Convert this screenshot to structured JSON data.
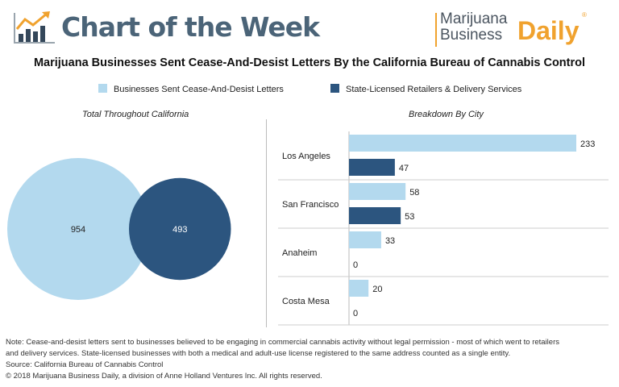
{
  "header": {
    "title": "Chart of the Week",
    "brand_line1": "Marijuana",
    "brand_line2": "Business",
    "brand_line3": "Daily",
    "brand_reg": "®"
  },
  "colors": {
    "light": "#b3d9ee",
    "dark": "#2c557f",
    "title": "#4b6478",
    "brand_orange": "#f0a22e"
  },
  "chart_data": [
    {
      "type": "bubble",
      "title": "Total Throughout California",
      "series": [
        {
          "name": "Businesses Sent Cease-And-Desist Letters",
          "value": 954
        },
        {
          "name": "State-Licensed Retailers & Delivery Services",
          "value": 493
        }
      ]
    },
    {
      "type": "bar",
      "orientation": "horizontal",
      "title": "Breakdown By City",
      "categories": [
        "Los Angeles",
        "San Francisco",
        "Anaheim",
        "Costa Mesa"
      ],
      "series": [
        {
          "name": "Businesses Sent Cease-And-Desist Letters",
          "values": [
            233,
            58,
            33,
            20
          ]
        },
        {
          "name": "State-Licensed Retailers & Delivery Services",
          "values": [
            47,
            53,
            0,
            0
          ]
        }
      ]
    }
  ],
  "main_title": "Marijuana Businesses Sent Cease-And-Desist Letters By the California Bureau of Cannabis Control",
  "legend": [
    "Businesses Sent Cease-And-Desist Letters",
    "State-Licensed Retailers & Delivery Services"
  ],
  "footer": {
    "note1": "Note: Cease-and-desist letters sent to businesses believed to be engaging in commercial cannabis activity without legal permission - most of which went to retailers",
    "note2": "and delivery services. State-licensed businesses with both a medical and adult-use license registered to the same address counted as a single entity.",
    "source": "Source: California Bureau of Cannabis Control",
    "copyright": "© 2018 Marijuana Business Daily, a division of Anne Holland Ventures Inc. All rights reserved."
  }
}
